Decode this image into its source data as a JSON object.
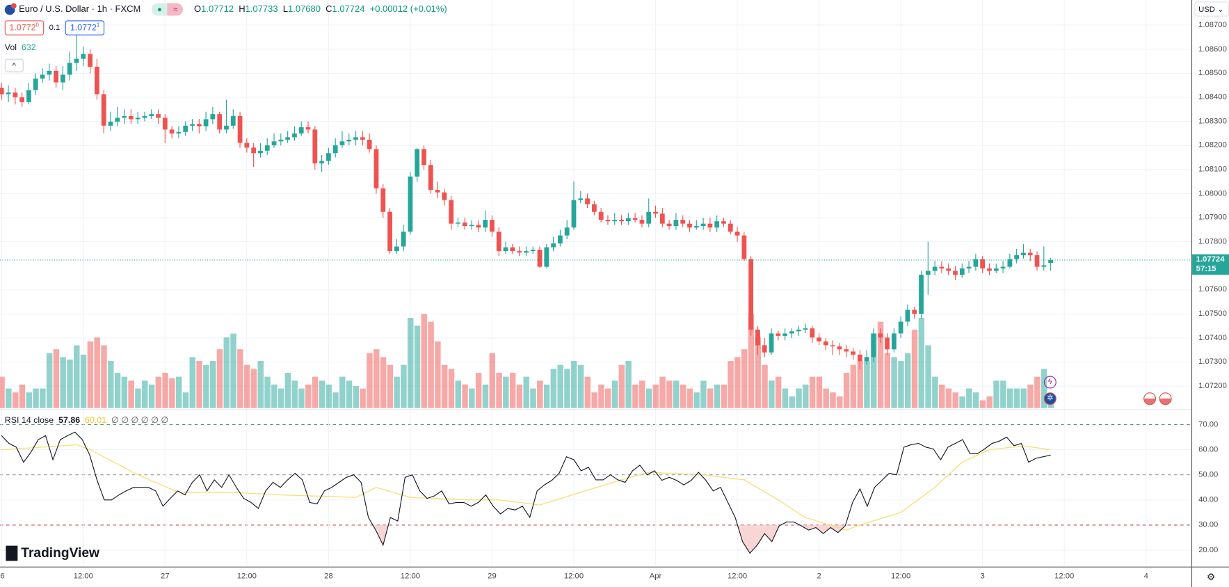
{
  "header": {
    "symbol": "Euro / U.S. Dollar · 1h · FXCM",
    "open_label": "O",
    "open": "1.07712",
    "high_label": "H",
    "high": "1.07733",
    "low_label": "L",
    "low": "1.07680",
    "close_label": "C",
    "close": "1.07724",
    "change": "+0.00012 (+0.01%)",
    "status_dot": "●",
    "status_wave": "≈"
  },
  "trade": {
    "sell_price": "1.0772",
    "sell_sup": "0",
    "spread": "0.1",
    "buy_price": "1.0772",
    "buy_sup": "1"
  },
  "volume_legend": {
    "label": "Vol",
    "value": "632"
  },
  "collapse_icon": "^",
  "rsi_legend": {
    "label": "RSI 14 close",
    "rsi": "57.86",
    "ma": "60.01",
    "extra": "∅ ∅ ∅ ∅ ∅ ∅"
  },
  "price_axis": {
    "currency": "USD",
    "ticks": [
      "1.08700",
      "1.08600",
      "1.08500",
      "1.08400",
      "1.08300",
      "1.08200",
      "1.08100",
      "1.08000",
      "1.07900",
      "1.07800",
      "1.07600",
      "1.07500",
      "1.07400",
      "1.07300",
      "1.07200"
    ],
    "current_price": "1.07724",
    "countdown": "57:15"
  },
  "rsi_axis": {
    "ticks": [
      "70.00",
      "60.00",
      "50.00",
      "40.00",
      "30.00",
      "20.00"
    ]
  },
  "time_axis": {
    "labels": [
      "6",
      "12:00",
      "27",
      "12:00",
      "28",
      "12:00",
      "29",
      "12:00",
      "Apr",
      "12:00",
      "2",
      "12:00",
      "3",
      "12:00",
      "4"
    ]
  },
  "branding": "TradingView",
  "settings_icon": "⚙",
  "colors": {
    "up": "#26a69a",
    "down": "#ef5350",
    "rsi": "#131722",
    "rsi_ma": "#f5e17a",
    "current": "#26a69a"
  },
  "chart_data": {
    "type": "candlestick",
    "title": "Euro / U.S. Dollar · 1h · FXCM",
    "interval": "1h",
    "ylim": [
      1.0712,
      1.0878
    ],
    "grid": true,
    "open": [
      1.0844,
      1.08413,
      1.0842,
      1.084,
      1.0838,
      1.0843,
      1.08478,
      1.08494,
      1.0851,
      1.08462,
      1.08494,
      1.08543,
      1.0856,
      1.0858,
      1.08527,
      1.08413,
      1.08282,
      1.08299,
      1.08315,
      1.08322,
      1.08309,
      1.08315,
      1.08322,
      1.0833,
      1.08315,
      1.08266,
      1.0825,
      1.08256,
      1.08282,
      1.08289,
      1.0828,
      1.08309,
      1.0833,
      1.08266,
      1.08282,
      1.08322,
      1.08211,
      1.08191,
      1.08168,
      1.08178,
      1.08201,
      1.08217,
      1.08224,
      1.08234,
      1.0825,
      1.08276,
      1.08266,
      1.08126,
      1.08136,
      1.08168,
      1.08201,
      1.08217,
      1.08224,
      1.08234,
      1.08224,
      1.08185,
      1.08022,
      1.07924,
      1.07761,
      1.0778,
      1.07842,
      1.08071,
      1.08185,
      1.08119,
      1.08015,
      1.08005,
      1.07973,
      1.07875,
      1.0788,
      1.07865,
      1.0787,
      1.07859,
      1.07891,
      1.07842,
      1.07761,
      1.07777,
      1.07761,
      1.07755,
      1.07761,
      1.07767,
      1.07696,
      1.07777,
      1.07793,
      1.07826,
      1.07859,
      1.07973,
      1.0798,
      1.07956,
      1.07924,
      1.07891,
      1.07885,
      1.07891,
      1.07885,
      1.07898,
      1.07891,
      1.07875,
      1.07924,
      1.07917,
      1.07875,
      1.07865,
      1.07891,
      1.07875,
      1.07859,
      1.07865,
      1.07875,
      1.07859,
      1.07885,
      1.07875,
      1.07842,
      1.07826,
      1.07728,
      1.07435,
      1.0737,
      1.0734,
      1.07419,
      1.07409,
      1.07419,
      1.07428,
      1.07435,
      1.0744,
      1.07402,
      1.07386,
      1.0737,
      1.07365,
      1.07353,
      1.07344,
      1.07331,
      1.07304,
      1.07321,
      1.07419,
      1.07402,
      1.07353,
      1.07419,
      1.07468,
      1.07517,
      1.075,
      1.07663,
      1.07679,
      1.07696,
      1.07689,
      1.07679,
      1.07663,
      1.07689,
      1.07696,
      1.07728,
      1.07689,
      1.07679,
      1.07689,
      1.07696,
      1.07728,
      1.07744,
      1.07754,
      1.07744,
      1.07696,
      1.07712
    ],
    "high": [
      1.0846,
      1.0845,
      1.0844,
      1.0842,
      1.0846,
      1.085,
      1.0852,
      1.0854,
      1.0853,
      1.0853,
      1.0859,
      1.0866,
      1.0861,
      1.086,
      1.0856,
      1.0843,
      1.0834,
      1.0836,
      1.0835,
      1.0835,
      1.0834,
      1.0834,
      1.0835,
      1.0835,
      1.0833,
      1.0828,
      1.0828,
      1.083,
      1.0831,
      1.0831,
      1.0834,
      1.0836,
      1.0834,
      1.0839,
      1.0835,
      1.0834,
      1.0823,
      1.0821,
      1.0821,
      1.0823,
      1.0825,
      1.0825,
      1.0826,
      1.0828,
      1.083,
      1.083,
      1.0828,
      1.0816,
      1.0819,
      1.0823,
      1.0826,
      1.0825,
      1.0826,
      1.0826,
      1.0825,
      1.082,
      1.0804,
      1.0794,
      1.0781,
      1.0787,
      1.0809,
      1.0819,
      1.082,
      1.0814,
      1.0805,
      1.0802,
      1.0799,
      1.079,
      1.079,
      1.0789,
      1.0789,
      1.0793,
      1.0791,
      1.0786,
      1.078,
      1.0779,
      1.0778,
      1.0778,
      1.0778,
      1.0778,
      1.0779,
      1.0782,
      1.0785,
      1.0789,
      1.0805,
      1.0801,
      1.08,
      1.0797,
      1.0794,
      1.0791,
      1.0792,
      1.0791,
      1.0792,
      1.0792,
      1.0791,
      1.0798,
      1.0795,
      1.0794,
      1.0789,
      1.0792,
      1.0791,
      1.0789,
      1.0789,
      1.079,
      1.079,
      1.0791,
      1.079,
      1.0789,
      1.0786,
      1.0784,
      1.0774,
      1.0745,
      1.074,
      1.0744,
      1.0743,
      1.0744,
      1.0744,
      1.0745,
      1.0746,
      1.0745,
      1.0742,
      1.074,
      1.0739,
      1.0738,
      1.0737,
      1.0736,
      1.0735,
      1.0735,
      1.0744,
      1.0744,
      1.0742,
      1.0744,
      1.0749,
      1.0754,
      1.0753,
      1.0768,
      1.078,
      1.0772,
      1.0772,
      1.0771,
      1.077,
      1.0771,
      1.0772,
      1.0775,
      1.0774,
      1.0771,
      1.0771,
      1.0772,
      1.0775,
      1.0777,
      1.0779,
      1.0777,
      1.0776,
      1.0778,
      1.07733
    ],
    "low": [
      1.0839,
      1.0838,
      1.0837,
      1.0836,
      1.0837,
      1.0841,
      1.0846,
      1.0847,
      1.0844,
      1.0843,
      1.0847,
      1.0851,
      1.0853,
      1.085,
      1.0839,
      1.0825,
      1.0826,
      1.0828,
      1.0829,
      1.0829,
      1.0829,
      1.083,
      1.0831,
      1.0829,
      1.0821,
      1.0823,
      1.0823,
      1.0824,
      1.0826,
      1.0825,
      1.0826,
      1.0829,
      1.0825,
      1.0825,
      1.0827,
      1.0819,
      1.0817,
      1.0811,
      1.0815,
      1.0816,
      1.0819,
      1.082,
      1.0821,
      1.0822,
      1.0824,
      1.0825,
      1.081,
      1.0809,
      1.0812,
      1.0815,
      1.0819,
      1.082,
      1.082,
      1.082,
      1.0817,
      1.08,
      1.079,
      1.0775,
      1.0775,
      1.0776,
      1.0783,
      1.0805,
      1.081,
      1.08,
      1.0798,
      1.0795,
      1.0785,
      1.0786,
      1.0785,
      1.0785,
      1.0784,
      1.0784,
      1.0782,
      1.0774,
      1.0775,
      1.0775,
      1.0774,
      1.0774,
      1.0775,
      1.0769,
      1.0769,
      1.0776,
      1.0778,
      1.0781,
      1.0785,
      1.0796,
      1.0794,
      1.0791,
      1.0788,
      1.0787,
      1.0787,
      1.0787,
      1.0787,
      1.0788,
      1.0786,
      1.0786,
      1.079,
      1.0786,
      1.0785,
      1.0785,
      1.0786,
      1.0784,
      1.0785,
      1.0785,
      1.0784,
      1.0784,
      1.0786,
      1.0783,
      1.078,
      1.0772,
      1.0741,
      1.0733,
      1.0732,
      1.0733,
      1.0739,
      1.0739,
      1.074,
      1.0741,
      1.0742,
      1.0738,
      1.0737,
      1.0735,
      1.0733,
      1.0733,
      1.0732,
      1.0731,
      1.0727,
      1.0729,
      1.073,
      1.0738,
      1.0733,
      1.0734,
      1.074,
      1.0745,
      1.0748,
      1.0748,
      1.0758,
      1.0766,
      1.0767,
      1.0766,
      1.0764,
      1.0765,
      1.0767,
      1.0768,
      1.0767,
      1.0766,
      1.0767,
      1.0767,
      1.0769,
      1.0771,
      1.0773,
      1.0772,
      1.0768,
      1.0768,
      1.0768
    ],
    "close": [
      1.08413,
      1.0842,
      1.084,
      1.0838,
      1.0843,
      1.08478,
      1.08494,
      1.0851,
      1.08462,
      1.08494,
      1.08543,
      1.0856,
      1.0858,
      1.08527,
      1.08413,
      1.08282,
      1.08299,
      1.08315,
      1.08322,
      1.08309,
      1.08315,
      1.08322,
      1.0833,
      1.08315,
      1.08266,
      1.0825,
      1.08256,
      1.08282,
      1.08289,
      1.0828,
      1.08309,
      1.0833,
      1.08266,
      1.08282,
      1.08322,
      1.08211,
      1.08191,
      1.08168,
      1.08178,
      1.08201,
      1.08217,
      1.08224,
      1.08234,
      1.0825,
      1.08276,
      1.08266,
      1.08126,
      1.08136,
      1.08168,
      1.08201,
      1.08217,
      1.08224,
      1.08234,
      1.08224,
      1.08185,
      1.08022,
      1.07924,
      1.07761,
      1.0778,
      1.07842,
      1.08071,
      1.08185,
      1.08119,
      1.08015,
      1.08005,
      1.07973,
      1.07875,
      1.0788,
      1.07865,
      1.0787,
      1.07859,
      1.07891,
      1.07842,
      1.07761,
      1.07777,
      1.07761,
      1.07755,
      1.07761,
      1.07767,
      1.07696,
      1.07777,
      1.07793,
      1.07826,
      1.07859,
      1.07973,
      1.0798,
      1.07956,
      1.07924,
      1.07891,
      1.07885,
      1.07891,
      1.07885,
      1.07898,
      1.07891,
      1.07875,
      1.07924,
      1.07917,
      1.07875,
      1.07865,
      1.07891,
      1.07875,
      1.07859,
      1.07865,
      1.07875,
      1.07859,
      1.07885,
      1.07875,
      1.07842,
      1.07826,
      1.07728,
      1.07435,
      1.0737,
      1.0734,
      1.07419,
      1.07409,
      1.07419,
      1.07428,
      1.07435,
      1.0744,
      1.07402,
      1.07386,
      1.0737,
      1.07365,
      1.07353,
      1.07344,
      1.07331,
      1.07304,
      1.07321,
      1.07419,
      1.07402,
      1.07353,
      1.07419,
      1.07468,
      1.07517,
      1.075,
      1.07663,
      1.07679,
      1.07696,
      1.07689,
      1.07679,
      1.07663,
      1.07689,
      1.07696,
      1.07728,
      1.07689,
      1.07679,
      1.07689,
      1.07696,
      1.07728,
      1.07744,
      1.07754,
      1.07744,
      1.07696,
      1.07702,
      1.07724
    ],
    "volume": [
      1680,
      1050,
      840,
      1260,
      840,
      1050,
      1050,
      2940,
      3150,
      2730,
      2600,
      3360,
      2860,
      3570,
      3780,
      3360,
      2520,
      1890,
      1680,
      1470,
      1050,
      1470,
      1260,
      1680,
      1890,
      1600,
      1680,
      840,
      2730,
      2520,
      2310,
      2520,
      3150,
      3780,
      3990,
      3150,
      2310,
      2100,
      2520,
      1680,
      1260,
      1050,
      1890,
      1470,
      1050,
      1260,
      1680,
      1470,
      1260,
      840,
      1680,
      1470,
      1180,
      1050,
      2940,
      3150,
      2730,
      2310,
      1680,
      2310,
      4830,
      4410,
      5040,
      4620,
      3570,
      2310,
      2100,
      1470,
      1260,
      1050,
      1890,
      1260,
      2940,
      1890,
      1680,
      1890,
      1260,
      1680,
      1050,
      1470,
      1260,
      2100,
      2310,
      2100,
      2520,
      2310,
      1680,
      840,
      1260,
      1050,
      1470,
      2310,
      2520,
      1260,
      1470,
      1050,
      1260,
      1680,
      1470,
      1470,
      1260,
      1050,
      840,
      1470,
      1050,
      1260,
      1260,
      2520,
      2730,
      3150,
      5040,
      3780,
      2310,
      1470,
      1680,
      1050,
      630,
      1050,
      1260,
      1680,
      1680,
      1050,
      840,
      630,
      1890,
      2310,
      2520,
      2520,
      3990,
      4620,
      2940,
      2730,
      2520,
      2940,
      4200,
      4830,
      3360,
      1680,
      1260,
      1050,
      840,
      630,
      1050,
      840,
      420,
      630,
      1470,
      1470,
      1050,
      1050,
      1050,
      1260,
      1680,
      2100,
      632
    ],
    "rsi": {
      "length": 14,
      "source": "close",
      "ylim": [
        13,
        73
      ],
      "levels": [
        70,
        50,
        30
      ],
      "values": [
        65.6,
        62.5,
        61,
        55,
        59,
        64,
        65.6,
        56,
        64,
        65.6,
        67,
        64,
        58,
        48,
        40,
        40,
        42,
        43.6,
        45,
        45,
        45,
        43.6,
        37.5,
        40.6,
        43.6,
        42,
        47,
        50,
        43.6,
        48,
        45,
        50,
        45,
        40.6,
        39,
        36.6,
        43.6,
        47,
        45,
        48,
        50.6,
        48,
        39,
        38.4,
        43.6,
        45,
        47,
        49,
        50,
        47,
        33,
        28,
        22,
        33,
        31.6,
        49,
        50,
        43.6,
        40.6,
        41.6,
        43.6,
        38.4,
        39,
        39,
        37.5,
        39,
        42,
        37.5,
        34.4,
        36.6,
        36,
        37.5,
        33,
        43.6,
        46,
        47.8,
        50.6,
        57.2,
        56,
        51.6,
        53,
        48,
        48,
        50,
        48,
        47,
        51.6,
        53.8,
        50,
        51.6,
        47.8,
        49,
        47.8,
        46,
        47.8,
        51,
        47.8,
        43.6,
        45,
        39,
        33,
        23.4,
        18.8,
        22,
        26.6,
        23.4,
        29.7,
        31.2,
        31.2,
        29.7,
        28,
        29,
        26.6,
        29,
        27,
        29.7,
        39,
        44.4,
        37.5,
        45,
        47.8,
        50.6,
        50,
        61,
        62,
        62.5,
        61,
        60.3,
        56,
        61,
        62.5,
        64,
        58.4,
        58.4,
        60.3,
        62.5,
        63.4,
        65,
        61.6,
        62.5,
        55,
        56.6,
        57.2,
        57.86
      ],
      "ma_points": [
        [
          0,
          60
        ],
        [
          6,
          61
        ],
        [
          11,
          62
        ],
        [
          13,
          60
        ],
        [
          20,
          50
        ],
        [
          26,
          43
        ],
        [
          34,
          43
        ],
        [
          41,
          42
        ],
        [
          52,
          41
        ],
        [
          55,
          45
        ],
        [
          60,
          41
        ],
        [
          69,
          40
        ],
        [
          73,
          40
        ],
        [
          79,
          38
        ],
        [
          85,
          43
        ],
        [
          91,
          48
        ],
        [
          95,
          51
        ],
        [
          103,
          50
        ],
        [
          109,
          48
        ],
        [
          114,
          40
        ],
        [
          118,
          33
        ],
        [
          124,
          28
        ],
        [
          126,
          30
        ],
        [
          132,
          35
        ],
        [
          137,
          45
        ],
        [
          141,
          55
        ],
        [
          145,
          60
        ],
        [
          150,
          61.5
        ],
        [
          154,
          60.01
        ]
      ]
    }
  }
}
